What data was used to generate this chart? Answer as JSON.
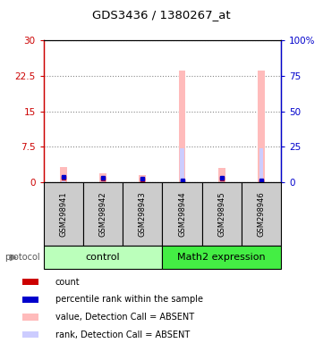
{
  "title": "GDS3436 / 1380267_at",
  "samples": [
    "GSM298941",
    "GSM298942",
    "GSM298943",
    "GSM298944",
    "GSM298945",
    "GSM298946"
  ],
  "group_labels": [
    "control",
    "Math2 expression"
  ],
  "group_colors": [
    "#bbffbb",
    "#44ee44"
  ],
  "value_bars": [
    3.2,
    2.0,
    1.5,
    23.5,
    3.0,
    23.5
  ],
  "rank_bars_pct": [
    4.0,
    3.5,
    2.5,
    24.0,
    4.0,
    24.0
  ],
  "count_vals": [
    1.0,
    0.8,
    0.6,
    0.3,
    0.8,
    0.3
  ],
  "percentile_vals": [
    1.2,
    1.0,
    0.8,
    0.5,
    1.0,
    0.5
  ],
  "left_ylim": [
    0,
    30
  ],
  "right_ylim": [
    0,
    100
  ],
  "left_yticks": [
    0,
    7.5,
    15,
    22.5,
    30
  ],
  "right_yticks": [
    0,
    25,
    50,
    75,
    100
  ],
  "left_ytick_labels": [
    "0",
    "7.5",
    "15",
    "22.5",
    "30"
  ],
  "right_ytick_labels": [
    "0",
    "25",
    "50",
    "75",
    "100%"
  ],
  "left_axis_color": "#cc0000",
  "right_axis_color": "#0000cc",
  "bar_color_value": "#ffbbbb",
  "bar_color_rank": "#ccccff",
  "count_color": "#cc0000",
  "percentile_color": "#0000cc",
  "bg_color": "#ffffff",
  "sample_box_color": "#cccccc",
  "legend_labels": [
    "count",
    "percentile rank within the sample",
    "value, Detection Call = ABSENT",
    "rank, Detection Call = ABSENT"
  ],
  "legend_colors": [
    "#cc0000",
    "#0000cc",
    "#ffbbbb",
    "#ccccff"
  ]
}
